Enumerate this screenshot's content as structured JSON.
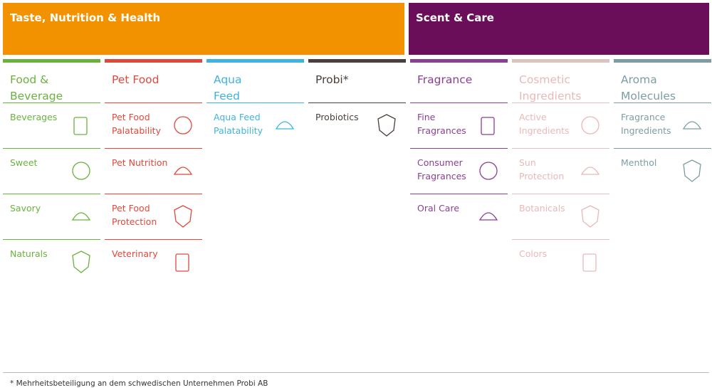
{
  "header": {
    "groups": [
      {
        "title": "Taste, Nutrition & Health"
      },
      {
        "title": "Scent & Care"
      }
    ]
  },
  "columns": [
    {
      "title": "Food & Beverage",
      "items": [
        "Beverages",
        "Sweet",
        "Savory",
        "Naturals"
      ]
    },
    {
      "title": "Pet Food",
      "items": [
        "Pet Food Palatability",
        "Pet Nutrition",
        "Pet Food Protection",
        "Veterinary"
      ]
    },
    {
      "title": "Aqua Feed",
      "items": [
        "Aqua Feed Palatability"
      ]
    },
    {
      "title": "Probi*",
      "items": [
        "Probiotics"
      ]
    },
    {
      "title": "Fragrance",
      "items": [
        "Fine Fragrances",
        "Consumer Fragrances",
        "Oral Care"
      ]
    },
    {
      "title": "Cosmetic Ingredients",
      "items": [
        "Active Ingredients",
        "Sun Protection",
        "Botanicals",
        "Colors"
      ]
    },
    {
      "title": "Aroma Molecules",
      "items": [
        "Fragrance Ingredients",
        "Menthol"
      ]
    }
  ],
  "footnote": "* Mehrheitsbeteiligung an dem schwedischen Unternehmen Probi AB"
}
